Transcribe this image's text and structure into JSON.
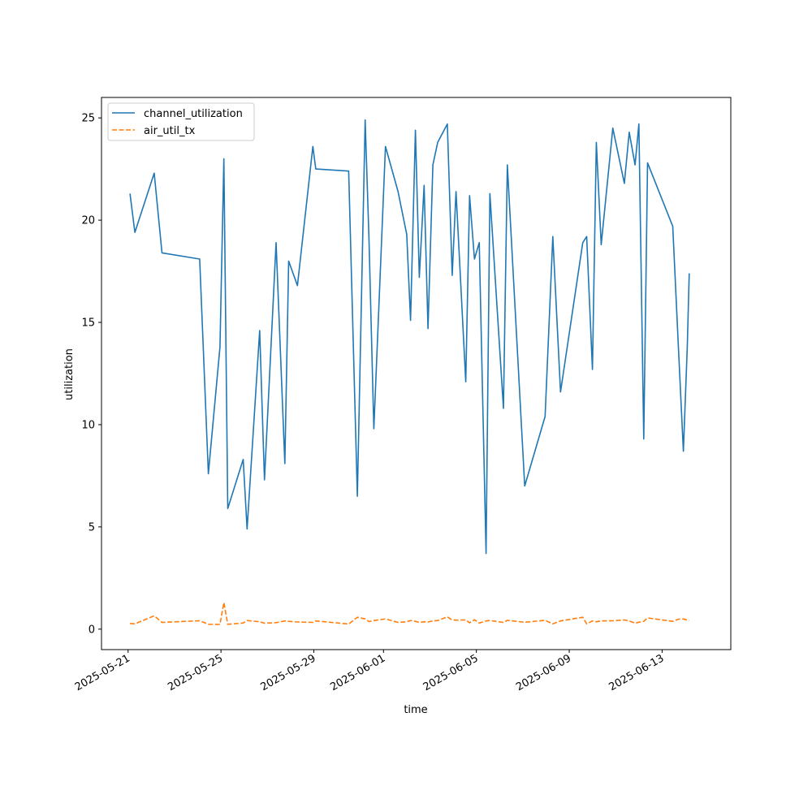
{
  "chart_data": {
    "type": "line",
    "title": "",
    "xlabel": "time",
    "ylabel": "utilization",
    "xlim": [
      "2025-05-19T20:30",
      "2025-06-15T23:00"
    ],
    "ylim": [
      -1.0,
      26.0
    ],
    "x_ticks": [
      "2025-05-21",
      "2025-05-25",
      "2025-05-29",
      "2025-06-01",
      "2025-06-05",
      "2025-06-09",
      "2025-06-13"
    ],
    "y_ticks": [
      0,
      5,
      10,
      15,
      20,
      25
    ],
    "legend": {
      "position": "upper-left"
    },
    "grid": false,
    "series": [
      {
        "name": "channel_utilization",
        "color": "#1f77b4",
        "style": "solid",
        "points": [
          [
            "2025-05-21T02:00",
            21.3
          ],
          [
            "2025-05-21T07:00",
            19.4
          ],
          [
            "2025-05-22T03:00",
            22.3
          ],
          [
            "2025-05-22T11:00",
            18.4
          ],
          [
            "2025-05-24T02:00",
            18.1
          ],
          [
            "2025-05-24T11:00",
            7.6
          ],
          [
            "2025-05-24T23:00",
            13.8
          ],
          [
            "2025-05-25T03:00",
            23.0
          ],
          [
            "2025-05-25T07:00",
            5.9
          ],
          [
            "2025-05-25T23:00",
            8.3
          ],
          [
            "2025-05-26T03:00",
            4.9
          ],
          [
            "2025-05-26T16:00",
            14.6
          ],
          [
            "2025-05-26T21:00",
            7.3
          ],
          [
            "2025-05-27T09:00",
            18.9
          ],
          [
            "2025-05-27T18:00",
            8.1
          ],
          [
            "2025-05-27T22:00",
            18.0
          ],
          [
            "2025-05-28T07:00",
            16.8
          ],
          [
            "2025-05-28T23:00",
            23.6
          ],
          [
            "2025-05-29T02:00",
            22.5
          ],
          [
            "2025-05-30T12:00",
            22.4
          ],
          [
            "2025-05-30T21:00",
            6.5
          ],
          [
            "2025-05-31T05:00",
            24.9
          ],
          [
            "2025-05-31T09:00",
            19.1
          ],
          [
            "2025-05-31T14:00",
            9.8
          ],
          [
            "2025-06-01T02:00",
            23.6
          ],
          [
            "2025-06-01T15:00",
            21.4
          ],
          [
            "2025-06-02T00:00",
            19.3
          ],
          [
            "2025-06-02T04:00",
            15.1
          ],
          [
            "2025-06-02T09:00",
            24.4
          ],
          [
            "2025-06-02T13:00",
            17.2
          ],
          [
            "2025-06-02T18:00",
            21.7
          ],
          [
            "2025-06-02T22:00",
            14.7
          ],
          [
            "2025-06-03T03:00",
            22.7
          ],
          [
            "2025-06-03T08:00",
            23.8
          ],
          [
            "2025-06-03T18:00",
            24.7
          ],
          [
            "2025-06-03T23:00",
            17.3
          ],
          [
            "2025-06-04T03:00",
            21.4
          ],
          [
            "2025-06-04T13:00",
            12.1
          ],
          [
            "2025-06-04T17:00",
            21.2
          ],
          [
            "2025-06-04T22:00",
            18.1
          ],
          [
            "2025-06-05T03:00",
            18.9
          ],
          [
            "2025-06-05T10:00",
            3.7
          ],
          [
            "2025-06-05T14:00",
            21.3
          ],
          [
            "2025-06-06T04:00",
            10.8
          ],
          [
            "2025-06-06T08:00",
            22.7
          ],
          [
            "2025-06-07T02:00",
            7.0
          ],
          [
            "2025-06-07T23:00",
            10.4
          ],
          [
            "2025-06-08T07:00",
            19.2
          ],
          [
            "2025-06-08T15:00",
            11.6
          ],
          [
            "2025-06-09T14:00",
            18.9
          ],
          [
            "2025-06-09T18:00",
            19.2
          ],
          [
            "2025-06-10T00:00",
            12.7
          ],
          [
            "2025-06-10T04:00",
            23.8
          ],
          [
            "2025-06-10T09:00",
            18.8
          ],
          [
            "2025-06-10T21:00",
            24.5
          ],
          [
            "2025-06-11T09:00",
            21.8
          ],
          [
            "2025-06-11T14:00",
            24.3
          ],
          [
            "2025-06-11T20:00",
            22.7
          ],
          [
            "2025-06-12T00:00",
            24.7
          ],
          [
            "2025-06-12T05:00",
            9.3
          ],
          [
            "2025-06-12T09:00",
            22.8
          ],
          [
            "2025-06-13T11:00",
            19.7
          ],
          [
            "2025-06-13T17:00",
            13.6
          ],
          [
            "2025-06-13T22:00",
            8.7
          ],
          [
            "2025-06-14T02:00",
            13.8
          ],
          [
            "2025-06-14T04:00",
            17.4
          ]
        ]
      },
      {
        "name": "air_util_tx",
        "color": "#ff7f0e",
        "style": "dashed",
        "points": [
          [
            "2025-05-21T02:00",
            0.28
          ],
          [
            "2025-05-21T07:00",
            0.26
          ],
          [
            "2025-05-22T03:00",
            0.65
          ],
          [
            "2025-05-22T11:00",
            0.33
          ],
          [
            "2025-05-24T02:00",
            0.41
          ],
          [
            "2025-05-24T11:00",
            0.24
          ],
          [
            "2025-05-24T23:00",
            0.23
          ],
          [
            "2025-05-25T03:00",
            1.3
          ],
          [
            "2025-05-25T07:00",
            0.24
          ],
          [
            "2025-05-25T23:00",
            0.3
          ],
          [
            "2025-05-26T03:00",
            0.42
          ],
          [
            "2025-05-26T16:00",
            0.36
          ],
          [
            "2025-05-26T21:00",
            0.29
          ],
          [
            "2025-05-27T09:00",
            0.32
          ],
          [
            "2025-05-27T18:00",
            0.4
          ],
          [
            "2025-05-27T22:00",
            0.38
          ],
          [
            "2025-05-28T07:00",
            0.35
          ],
          [
            "2025-05-28T23:00",
            0.33
          ],
          [
            "2025-05-29T02:00",
            0.4
          ],
          [
            "2025-05-30T12:00",
            0.25
          ],
          [
            "2025-05-30T21:00",
            0.58
          ],
          [
            "2025-05-31T05:00",
            0.5
          ],
          [
            "2025-05-31T09:00",
            0.37
          ],
          [
            "2025-05-31T14:00",
            0.42
          ],
          [
            "2025-06-01T02:00",
            0.5
          ],
          [
            "2025-06-01T15:00",
            0.33
          ],
          [
            "2025-06-02T00:00",
            0.36
          ],
          [
            "2025-06-02T04:00",
            0.42
          ],
          [
            "2025-06-02T09:00",
            0.38
          ],
          [
            "2025-06-02T13:00",
            0.33
          ],
          [
            "2025-06-02T18:00",
            0.36
          ],
          [
            "2025-06-02T22:00",
            0.35
          ],
          [
            "2025-06-03T03:00",
            0.4
          ],
          [
            "2025-06-03T08:00",
            0.42
          ],
          [
            "2025-06-03T18:00",
            0.6
          ],
          [
            "2025-06-03T23:00",
            0.45
          ],
          [
            "2025-06-04T03:00",
            0.44
          ],
          [
            "2025-06-04T13:00",
            0.45
          ],
          [
            "2025-06-04T17:00",
            0.31
          ],
          [
            "2025-06-04T22:00",
            0.46
          ],
          [
            "2025-06-05T03:00",
            0.3
          ],
          [
            "2025-06-05T10:00",
            0.4
          ],
          [
            "2025-06-05T14:00",
            0.42
          ],
          [
            "2025-06-06T04:00",
            0.33
          ],
          [
            "2025-06-06T08:00",
            0.43
          ],
          [
            "2025-06-07T02:00",
            0.34
          ],
          [
            "2025-06-07T23:00",
            0.43
          ],
          [
            "2025-06-08T07:00",
            0.26
          ],
          [
            "2025-06-08T15:00",
            0.4
          ],
          [
            "2025-06-09T14:00",
            0.58
          ],
          [
            "2025-06-09T18:00",
            0.26
          ],
          [
            "2025-06-10T00:00",
            0.4
          ],
          [
            "2025-06-10T04:00",
            0.36
          ],
          [
            "2025-06-10T09:00",
            0.4
          ],
          [
            "2025-06-10T21:00",
            0.41
          ],
          [
            "2025-06-11T09:00",
            0.45
          ],
          [
            "2025-06-11T14:00",
            0.4
          ],
          [
            "2025-06-11T20:00",
            0.29
          ],
          [
            "2025-06-12T00:00",
            0.34
          ],
          [
            "2025-06-12T05:00",
            0.38
          ],
          [
            "2025-06-12T09:00",
            0.55
          ],
          [
            "2025-06-13T11:00",
            0.38
          ],
          [
            "2025-06-13T17:00",
            0.49
          ],
          [
            "2025-06-13T22:00",
            0.5
          ],
          [
            "2025-06-14T02:00",
            0.44
          ],
          [
            "2025-06-14T04:00",
            0.42
          ]
        ]
      }
    ]
  }
}
